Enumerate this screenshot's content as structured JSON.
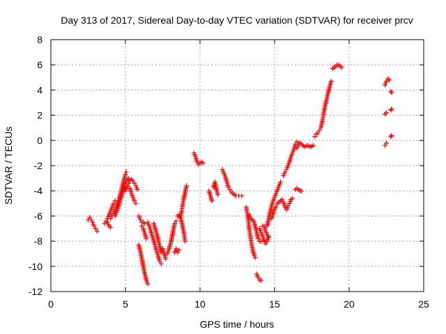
{
  "chart_data": {
    "type": "scatter",
    "title": "Day 313 of 2017, Sidereal Day-to-day VTEC variation (SDTVAR) for receiver prcv",
    "xlabel": "GPS time / hours",
    "ylabel": "SDTVAR / TECUs",
    "xlim": [
      0,
      25
    ],
    "ylim": [
      -12,
      8
    ],
    "xticks": [
      0,
      5,
      10,
      15,
      20,
      25
    ],
    "yticks": [
      -12,
      -10,
      -8,
      -6,
      -4,
      -2,
      0,
      2,
      4,
      6,
      8
    ],
    "grid": true,
    "marker": "plus",
    "color": "#ff0000",
    "segments": [
      [
        [
          2.5,
          -6.3
        ],
        [
          2.6,
          -6.1
        ],
        [
          2.7,
          -6.3
        ],
        [
          2.8,
          -6.5
        ],
        [
          2.9,
          -6.8
        ],
        [
          3.0,
          -7.0
        ],
        [
          3.1,
          -7.2
        ]
      ],
      [
        [
          3.6,
          -6.6
        ],
        [
          3.7,
          -6.4
        ],
        [
          3.8,
          -6.5
        ],
        [
          3.9,
          -6.8
        ],
        [
          4.0,
          -6.9
        ]
      ],
      [
        [
          3.8,
          -6.2
        ],
        [
          3.9,
          -5.9
        ],
        [
          4.0,
          -5.6
        ],
        [
          4.1,
          -5.3
        ],
        [
          4.2,
          -5.0
        ],
        [
          4.3,
          -4.8
        ]
      ],
      [
        [
          4.0,
          -6.2
        ],
        [
          4.1,
          -6.0
        ],
        [
          4.2,
          -5.8
        ],
        [
          4.3,
          -5.5
        ],
        [
          4.4,
          -5.2
        ],
        [
          4.5,
          -4.9
        ],
        [
          4.6,
          -4.5
        ],
        [
          4.7,
          -4.1
        ],
        [
          4.8,
          -3.6
        ],
        [
          4.9,
          -3.1
        ],
        [
          5.0,
          -2.7
        ],
        [
          5.05,
          -2.5
        ]
      ],
      [
        [
          4.3,
          -6.0
        ],
        [
          4.4,
          -5.7
        ],
        [
          4.5,
          -5.4
        ],
        [
          4.6,
          -5.0
        ],
        [
          4.7,
          -4.6
        ],
        [
          4.8,
          -4.2
        ],
        [
          4.9,
          -3.8
        ],
        [
          5.0,
          -3.4
        ],
        [
          5.1,
          -3.1
        ],
        [
          5.2,
          -3.0
        ]
      ],
      [
        [
          5.0,
          -4.0
        ],
        [
          5.1,
          -3.7
        ],
        [
          5.2,
          -3.4
        ],
        [
          5.3,
          -3.2
        ],
        [
          5.4,
          -3.1
        ],
        [
          5.5,
          -3.2
        ],
        [
          5.6,
          -3.4
        ],
        [
          5.7,
          -3.6
        ],
        [
          5.8,
          -3.9
        ]
      ],
      [
        [
          5.3,
          -3.8
        ],
        [
          5.4,
          -4.2
        ],
        [
          5.5,
          -4.5
        ],
        [
          5.6,
          -4.8
        ],
        [
          5.7,
          -5.0
        ]
      ],
      [
        [
          5.9,
          -6.0
        ],
        [
          6.0,
          -6.3
        ],
        [
          6.1,
          -6.5
        ],
        [
          6.2,
          -6.5
        ],
        [
          6.3,
          -6.6
        ]
      ],
      [
        [
          5.9,
          -8.3
        ],
        [
          6.0,
          -8.8
        ],
        [
          6.1,
          -9.4
        ],
        [
          6.2,
          -10.0
        ],
        [
          6.3,
          -10.6
        ],
        [
          6.4,
          -11.1
        ],
        [
          6.5,
          -11.4
        ]
      ],
      [
        [
          6.1,
          -6.8
        ],
        [
          6.2,
          -7.0
        ],
        [
          6.3,
          -7.4
        ],
        [
          6.4,
          -7.8
        ]
      ],
      [
        [
          6.5,
          -6.5
        ],
        [
          6.6,
          -6.8
        ],
        [
          6.7,
          -7.2
        ],
        [
          6.8,
          -7.6
        ],
        [
          6.9,
          -8.0
        ],
        [
          7.0,
          -8.4
        ],
        [
          7.1,
          -8.8
        ],
        [
          7.2,
          -9.2
        ],
        [
          7.3,
          -9.6
        ],
        [
          7.4,
          -9.8
        ]
      ],
      [
        [
          6.9,
          -6.6
        ],
        [
          7.0,
          -7.0
        ],
        [
          7.1,
          -7.4
        ],
        [
          7.2,
          -7.9
        ],
        [
          7.3,
          -8.4
        ],
        [
          7.4,
          -8.9
        ]
      ],
      [
        [
          7.5,
          -8.6
        ],
        [
          7.6,
          -9.0
        ],
        [
          7.7,
          -9.4
        ]
      ],
      [
        [
          7.8,
          -9.0
        ],
        [
          7.9,
          -8.7
        ],
        [
          8.0,
          -8.3
        ],
        [
          8.1,
          -7.8
        ],
        [
          8.2,
          -7.2
        ],
        [
          8.3,
          -6.6
        ],
        [
          8.4,
          -6.4
        ]
      ],
      [
        [
          8.3,
          -8.9
        ],
        [
          8.4,
          -8.6
        ],
        [
          8.5,
          -8.9
        ],
        [
          8.6,
          -8.7
        ]
      ],
      [
        [
          8.5,
          -6.0
        ],
        [
          8.6,
          -5.9
        ],
        [
          8.7,
          -6.2
        ],
        [
          8.8,
          -6.6
        ],
        [
          8.9,
          -7.2
        ],
        [
          9.0,
          -8.0
        ]
      ],
      [
        [
          8.7,
          -6.1
        ],
        [
          8.8,
          -5.4
        ],
        [
          8.9,
          -4.7
        ],
        [
          9.0,
          -4.1
        ],
        [
          9.1,
          -3.6
        ]
      ],
      [
        [
          9.6,
          -1.0
        ],
        [
          9.7,
          -1.3
        ],
        [
          9.8,
          -1.7
        ],
        [
          9.9,
          -1.9
        ],
        [
          10.0,
          -1.8
        ],
        [
          10.1,
          -1.7
        ],
        [
          10.2,
          -1.8
        ]
      ],
      [
        [
          10.6,
          -4.0
        ],
        [
          10.7,
          -4.4
        ],
        [
          10.8,
          -4.8
        ]
      ],
      [
        [
          10.9,
          -3.7
        ],
        [
          11.0,
          -3.3
        ],
        [
          11.1,
          -3.9
        ],
        [
          11.2,
          -4.3
        ]
      ],
      [
        [
          11.5,
          -2.3
        ],
        [
          11.6,
          -2.6
        ],
        [
          11.7,
          -2.9
        ],
        [
          11.8,
          -3.3
        ],
        [
          11.9,
          -3.7
        ],
        [
          12.0,
          -3.9
        ],
        [
          12.1,
          -4.1
        ],
        [
          12.2,
          -4.2
        ],
        [
          12.3,
          -4.3
        ],
        [
          12.4,
          -4.4
        ],
        [
          12.6,
          -4.4
        ],
        [
          12.8,
          -4.4
        ]
      ],
      [
        [
          13.1,
          -5.3
        ],
        [
          13.2,
          -6.0
        ],
        [
          13.3,
          -7.0
        ],
        [
          13.4,
          -7.8
        ],
        [
          13.5,
          -8.5
        ],
        [
          13.6,
          -9.0
        ],
        [
          13.7,
          -9.3
        ]
      ],
      [
        [
          13.3,
          -5.9
        ],
        [
          13.4,
          -6.2
        ],
        [
          13.5,
          -6.3
        ],
        [
          13.6,
          -6.4
        ],
        [
          13.7,
          -6.8
        ],
        [
          13.8,
          -7.3
        ],
        [
          13.9,
          -7.8
        ],
        [
          14.0,
          -8.0
        ],
        [
          14.1,
          -8.0
        ]
      ],
      [
        [
          13.8,
          -10.6
        ],
        [
          13.9,
          -10.9
        ],
        [
          14.0,
          -11.1
        ],
        [
          14.1,
          -11.1
        ]
      ],
      [
        [
          14.0,
          -7.0
        ],
        [
          14.1,
          -7.3
        ],
        [
          14.2,
          -7.6
        ],
        [
          14.3,
          -7.9
        ],
        [
          14.4,
          -8.2
        ],
        [
          14.5,
          -8.0
        ],
        [
          14.6,
          -7.6
        ]
      ],
      [
        [
          14.2,
          -6.8
        ],
        [
          14.3,
          -6.8
        ],
        [
          14.4,
          -7.2
        ],
        [
          14.5,
          -7.5
        ],
        [
          14.6,
          -7.7
        ]
      ],
      [
        [
          14.5,
          -6.8
        ],
        [
          14.6,
          -6.3
        ],
        [
          14.7,
          -5.7
        ],
        [
          14.8,
          -5.2
        ],
        [
          14.9,
          -4.8
        ],
        [
          15.0,
          -4.5
        ],
        [
          15.1,
          -4.2
        ],
        [
          15.2,
          -3.9
        ],
        [
          15.3,
          -3.6
        ],
        [
          15.4,
          -3.3
        ]
      ],
      [
        [
          14.8,
          -6.2
        ],
        [
          14.9,
          -5.8
        ],
        [
          15.0,
          -5.5
        ],
        [
          15.1,
          -5.2
        ],
        [
          15.2,
          -5.0
        ],
        [
          15.3,
          -4.9
        ],
        [
          15.4,
          -4.8
        ]
      ],
      [
        [
          15.5,
          -4.7
        ],
        [
          15.6,
          -4.9
        ],
        [
          15.7,
          -5.3
        ],
        [
          15.8,
          -5.5
        ],
        [
          15.9,
          -5.2
        ],
        [
          16.0,
          -5.0
        ],
        [
          16.1,
          -4.7
        ],
        [
          16.2,
          -4.6
        ]
      ],
      [
        [
          15.6,
          -2.8
        ],
        [
          15.7,
          -2.5
        ],
        [
          15.8,
          -2.3
        ],
        [
          15.9,
          -2.0
        ],
        [
          16.0,
          -1.7
        ],
        [
          16.1,
          -1.3
        ],
        [
          16.2,
          -1.0
        ],
        [
          16.3,
          -0.7
        ],
        [
          16.4,
          -0.3
        ],
        [
          16.5,
          -0.1
        ]
      ],
      [
        [
          16.4,
          -3.9
        ],
        [
          16.5,
          -3.8
        ],
        [
          16.6,
          -3.9
        ],
        [
          16.7,
          -4.0
        ],
        [
          16.8,
          -4.0
        ]
      ],
      [
        [
          16.5,
          -0.6
        ],
        [
          16.6,
          -0.3
        ],
        [
          16.7,
          -0.2
        ],
        [
          16.8,
          -0.3
        ],
        [
          17.0,
          -0.5
        ],
        [
          17.2,
          -0.4
        ],
        [
          17.4,
          -0.5
        ],
        [
          17.6,
          -0.4
        ]
      ],
      [
        [
          17.7,
          0.3
        ],
        [
          17.8,
          0.5
        ],
        [
          17.9,
          0.6
        ],
        [
          18.0,
          0.8
        ],
        [
          18.1,
          1.0
        ],
        [
          18.2,
          1.5
        ],
        [
          18.3,
          2.2
        ],
        [
          18.4,
          2.8
        ],
        [
          18.5,
          3.3
        ],
        [
          18.6,
          3.8
        ],
        [
          18.7,
          4.3
        ],
        [
          18.8,
          4.7
        ]
      ],
      [
        [
          18.9,
          5.7
        ],
        [
          19.0,
          5.8
        ],
        [
          19.1,
          5.9
        ],
        [
          19.2,
          6.0
        ],
        [
          19.3,
          6.0
        ],
        [
          19.4,
          5.9
        ],
        [
          19.5,
          5.8
        ]
      ],
      [
        [
          22.4,
          4.4
        ],
        [
          22.5,
          4.7
        ],
        [
          22.6,
          4.9
        ],
        [
          22.7,
          4.8
        ]
      ],
      [
        [
          22.4,
          2.1
        ],
        [
          22.5,
          2.2
        ]
      ],
      [
        [
          22.4,
          -0.4
        ],
        [
          22.5,
          -0.2
        ]
      ],
      [
        [
          22.8,
          3.9
        ],
        [
          22.85,
          3.8
        ]
      ],
      [
        [
          22.8,
          2.4
        ],
        [
          22.85,
          2.5
        ]
      ],
      [
        [
          22.8,
          0.3
        ],
        [
          22.85,
          0.4
        ]
      ]
    ]
  }
}
